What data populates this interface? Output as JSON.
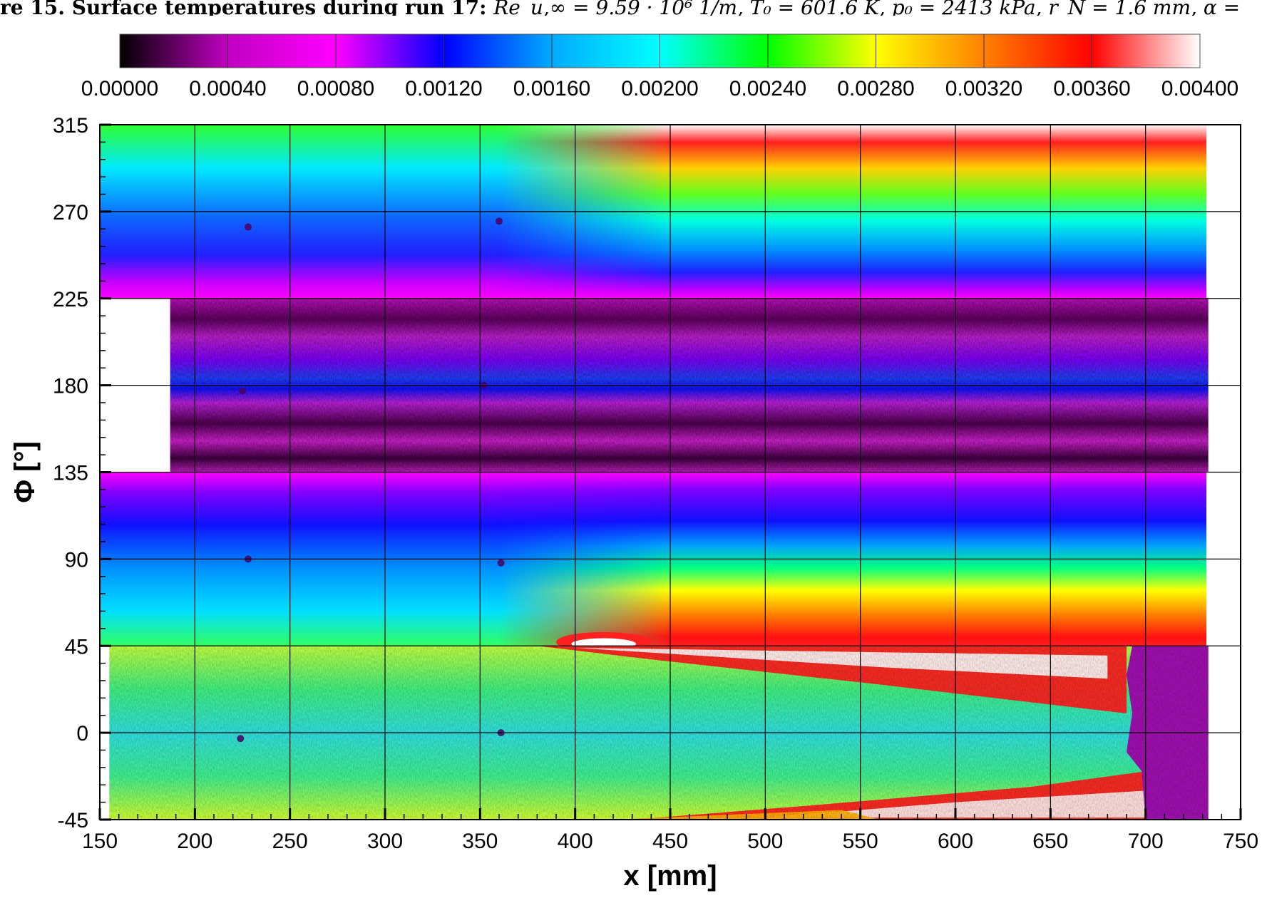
{
  "caption": {
    "label": "re 15.  Surface temperatures during run 17:",
    "equation": "Re_u,∞ = 9.59 · 10⁶ 1/m,  T₀ = 601.6 K,  p₀ = 2413 kPa, r_N = 1.6 mm, α ="
  },
  "chart_data": {
    "type": "heatmap",
    "title": "",
    "xlabel": "x [mm]",
    "ylabel": "Φ [°]",
    "xlim": [
      150,
      750
    ],
    "ylim": [
      -45,
      315
    ],
    "x_ticks": [
      "150",
      "200",
      "250",
      "300",
      "350",
      "400",
      "450",
      "500",
      "550",
      "600",
      "650",
      "700",
      "750"
    ],
    "y_ticks": [
      "-45",
      "0",
      "45",
      "90",
      "135",
      "180",
      "225",
      "270",
      "315"
    ],
    "grid": true,
    "colorbar": {
      "position": "top",
      "min": 0.0,
      "max": 0.004,
      "tick_labels": [
        "0.00000",
        "0.00040",
        "0.00080",
        "0.00120",
        "0.00160",
        "0.00200",
        "0.00240",
        "0.00280",
        "0.00320",
        "0.00360",
        "0.00400"
      ],
      "colors": [
        "#000000",
        "#c000c0",
        "#ff00ff",
        "#0000ff",
        "#00aaff",
        "#00ffff",
        "#00ff00",
        "#ffff00",
        "#ff8000",
        "#ff0000",
        "#ffffff"
      ]
    },
    "bands": [
      {
        "phi_range": [
          225,
          315
        ],
        "x_range": [
          150,
          732
        ],
        "description": "smooth field: blue/violet at low phi, rising to yellow/red/white near phi 315 beyond x 420"
      },
      {
        "phi_range": [
          135,
          225
        ],
        "x_range": [
          187,
          733
        ],
        "description": "noisy magenta/violet stripes with blue band near phi 185"
      },
      {
        "phi_range": [
          45,
          135
        ],
        "x_range": [
          150,
          732
        ],
        "description": "smooth field: magenta/blue near phi 135, green/yellow/red near phi 45, white hot spot near x 410"
      },
      {
        "phi_range": [
          -45,
          45
        ],
        "x_range": [
          155,
          733
        ],
        "description": "noisy field: yellow-green left, cyan center, red/white streaks, magenta noise beyond x 700"
      }
    ],
    "probes": [
      {
        "x": 228,
        "phi": 262
      },
      {
        "x": 360,
        "phi": 265
      },
      {
        "x": 225,
        "phi": 177
      },
      {
        "x": 352,
        "phi": 180
      },
      {
        "x": 228,
        "phi": 90
      },
      {
        "x": 361,
        "phi": 88
      },
      {
        "x": 224,
        "phi": -3
      },
      {
        "x": 361,
        "phi": 0
      }
    ]
  }
}
